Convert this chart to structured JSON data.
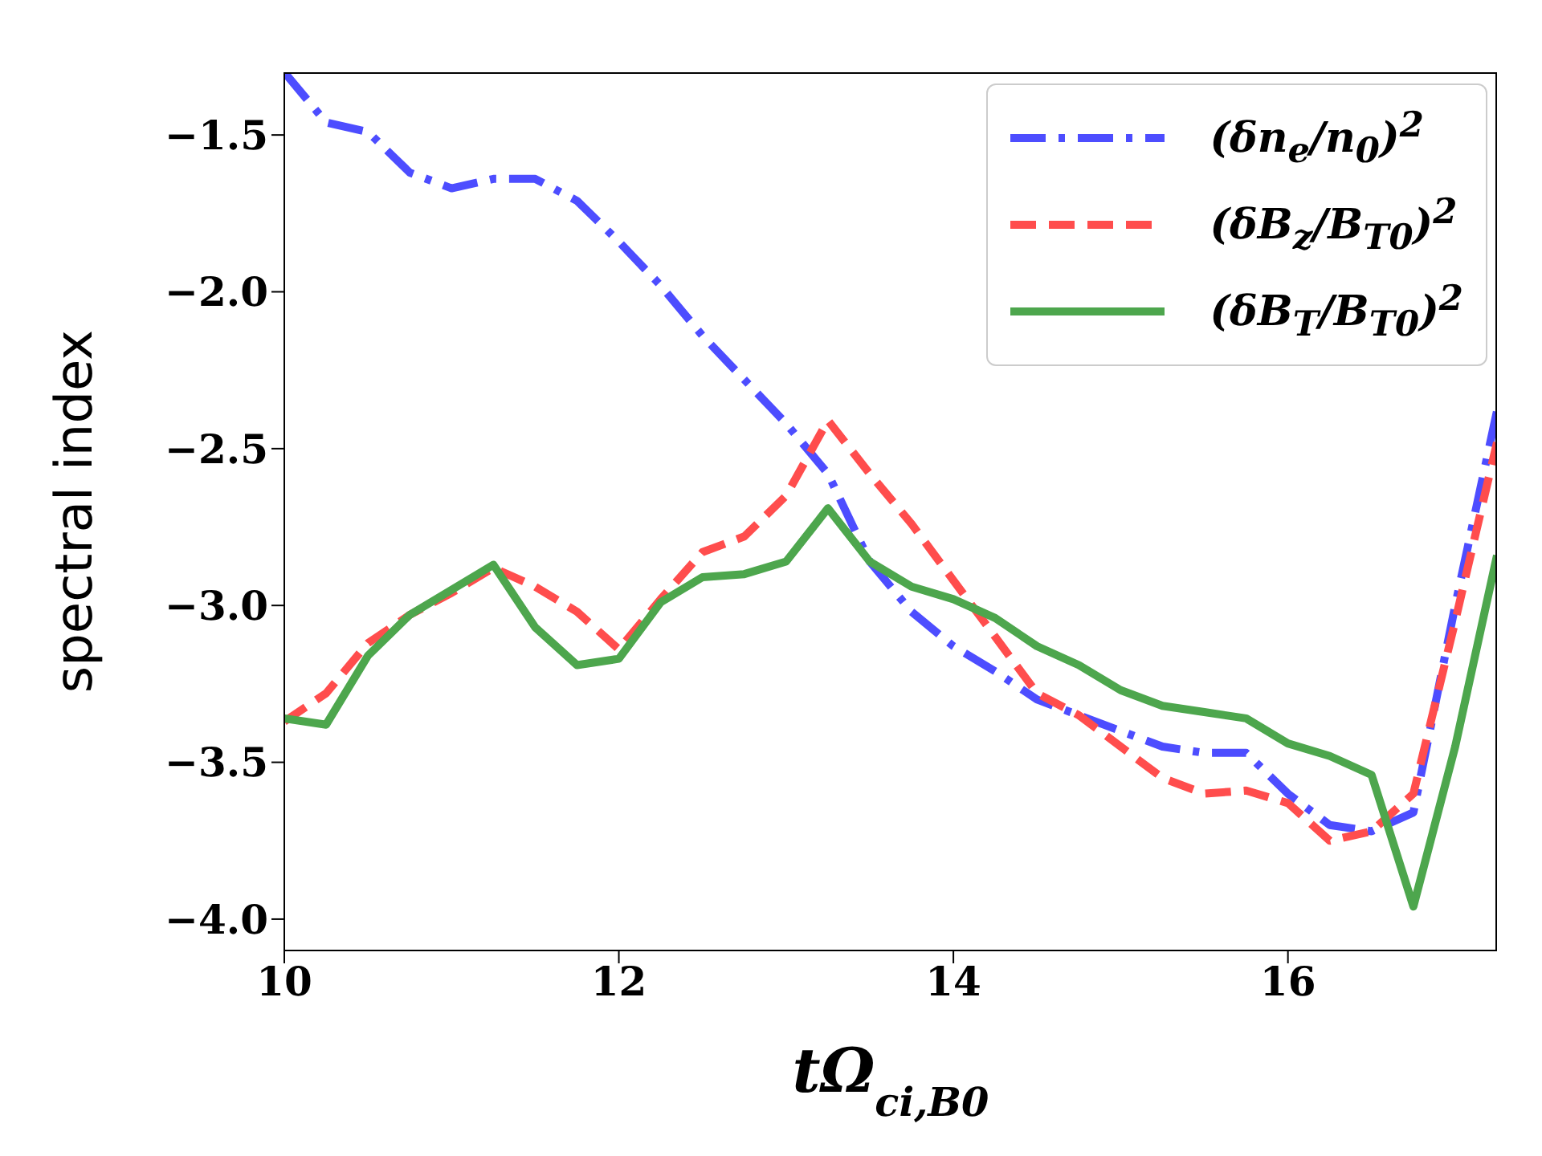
{
  "chart_data": {
    "type": "line",
    "xlabel": "tΩ$_{ci,B0}$",
    "ylabel": "spectral index",
    "x": [
      10,
      10.25,
      10.5,
      10.75,
      11,
      11.25,
      11.5,
      11.75,
      12,
      12.25,
      12.5,
      12.75,
      13,
      13.25,
      13.5,
      13.75,
      14,
      14.25,
      14.5,
      14.75,
      15,
      15.25,
      15.5,
      15.75,
      16,
      16.25,
      16.5,
      16.75,
      17,
      17.25
    ],
    "series": [
      {
        "name": "(δn$_{e}$/n$_{0}$)$^{2}$",
        "color": "#4d4dff",
        "line_style": "dashdot",
        "values": [
          -1.3,
          -1.46,
          -1.49,
          -1.62,
          -1.67,
          -1.64,
          -1.64,
          -1.71,
          -1.84,
          -1.98,
          -2.14,
          -2.28,
          -2.42,
          -2.58,
          -2.86,
          -3.02,
          -3.13,
          -3.21,
          -3.3,
          -3.35,
          -3.4,
          -3.45,
          -3.47,
          -3.47,
          -3.6,
          -3.7,
          -3.72,
          -3.66,
          -3.0,
          -2.38
        ]
      },
      {
        "name": "(δB$_{z}$/B$_{T0}$)$^{2}$",
        "color": "#ff4d4d",
        "line_style": "dashed",
        "values": [
          -3.37,
          -3.28,
          -3.12,
          -3.03,
          -2.96,
          -2.88,
          -2.94,
          -3.02,
          -3.14,
          -2.98,
          -2.83,
          -2.78,
          -2.65,
          -2.41,
          -2.58,
          -2.74,
          -2.92,
          -3.1,
          -3.28,
          -3.35,
          -3.45,
          -3.55,
          -3.6,
          -3.59,
          -3.63,
          -3.75,
          -3.72,
          -3.6,
          -3.05,
          -2.48
        ]
      },
      {
        "name": "(δB$_{T}$/B$_{T0}$)$^{2}$",
        "color": "#4da64d",
        "line_style": "solid",
        "values": [
          -3.36,
          -3.38,
          -3.16,
          -3.03,
          -2.95,
          -2.87,
          -3.07,
          -3.19,
          -3.17,
          -2.99,
          -2.91,
          -2.9,
          -2.86,
          -2.69,
          -2.86,
          -2.94,
          -2.98,
          -3.04,
          -3.13,
          -3.19,
          -3.27,
          -3.32,
          -3.34,
          -3.36,
          -3.44,
          -3.48,
          -3.54,
          -3.96,
          -3.45,
          -2.84
        ]
      }
    ],
    "xlim": [
      10,
      17.25
    ],
    "xticks": [
      10,
      12,
      14,
      16
    ],
    "ylim": [
      -4.1,
      -1.3
    ],
    "yticks": [
      {
        "value": -4.0,
        "label": "−4.0"
      },
      {
        "value": -3.5,
        "label": "−3.5"
      },
      {
        "value": -3.0,
        "label": "−3.0"
      },
      {
        "value": -2.5,
        "label": "−2.5"
      },
      {
        "value": -2.0,
        "label": "−2.0"
      },
      {
        "value": -1.5,
        "label": "−1.5"
      }
    ],
    "grid": false,
    "legend": "top right",
    "marker": "none"
  }
}
